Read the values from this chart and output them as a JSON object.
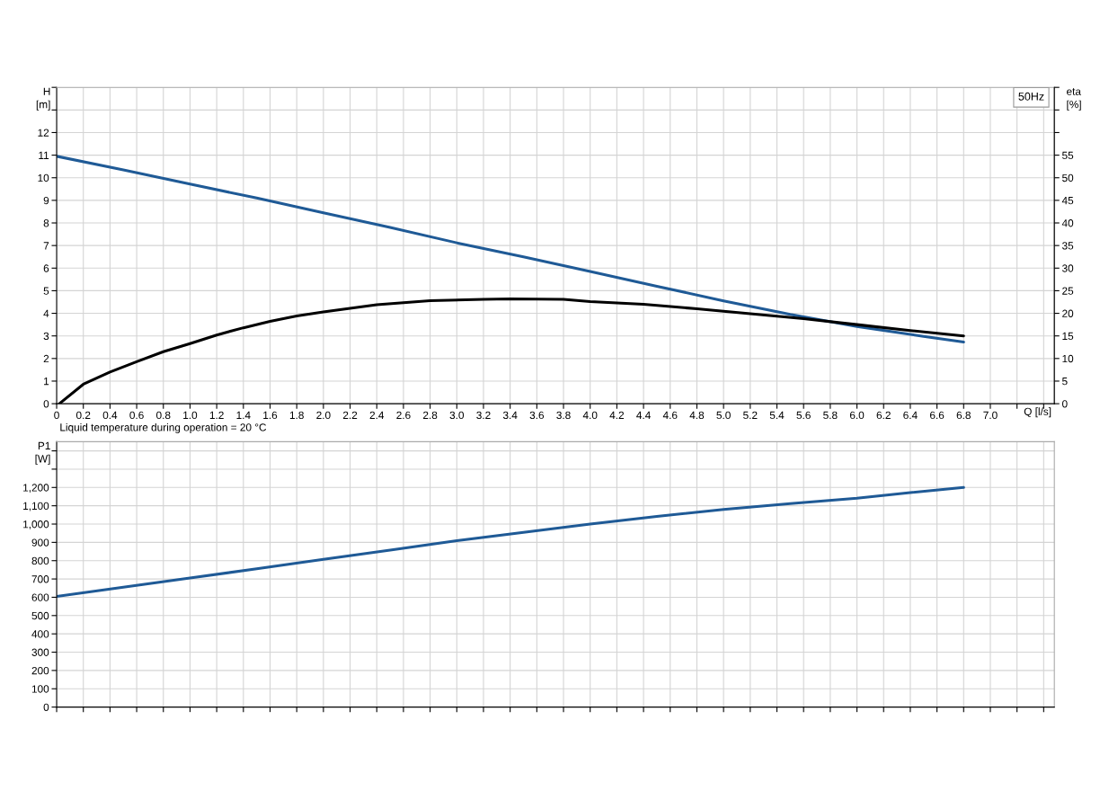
{
  "chart_data": [
    {
      "type": "line",
      "xlabel": "Q [l/s]",
      "ylabel": "H\n[m]",
      "y2label": "eta\n[%]",
      "annotations": [
        "Liquid temperature during operation = 20 °C",
        "50Hz"
      ],
      "xlim": [
        0,
        7.48
      ],
      "ylim": [
        0,
        14
      ],
      "y2lim": [
        0,
        70
      ],
      "grid": true,
      "xticks": [
        0,
        {
          "value": 0.2,
          "label": "0.2"
        },
        {
          "value": 0.4,
          "label": "0.4"
        },
        {
          "value": 0.6,
          "label": "0.6"
        },
        {
          "value": 0.8,
          "label": "0.8"
        },
        {
          "value": 1.0,
          "label": "1.0"
        },
        {
          "value": 1.2,
          "label": "1.2"
        },
        {
          "value": 1.4,
          "label": "1.4"
        },
        {
          "value": 1.6,
          "label": "1.6"
        },
        {
          "value": 1.8,
          "label": "1.8"
        },
        {
          "value": 2.0,
          "label": "2.0"
        },
        {
          "value": 2.2,
          "label": "2.2"
        },
        {
          "value": 2.4,
          "label": "2.4"
        },
        {
          "value": 2.6,
          "label": "2.6"
        },
        {
          "value": 2.8,
          "label": "2.8"
        },
        {
          "value": 3.0,
          "label": "3.0"
        },
        {
          "value": 3.2,
          "label": "3.2"
        },
        {
          "value": 3.4,
          "label": "3.4"
        },
        {
          "value": 3.6,
          "label": "3.6"
        },
        {
          "value": 3.8,
          "label": "3.8"
        },
        {
          "value": 4.0,
          "label": "4.0"
        },
        {
          "value": 4.2,
          "label": "4.2"
        },
        {
          "value": 4.4,
          "label": "4.4"
        },
        {
          "value": 4.6,
          "label": "4.6"
        },
        {
          "value": 4.8,
          "label": "4.8"
        },
        {
          "value": 5.0,
          "label": "5.0"
        },
        {
          "value": 5.2,
          "label": "5.2"
        },
        {
          "value": 5.4,
          "label": "5.4"
        },
        {
          "value": 5.6,
          "label": "5.6"
        },
        {
          "value": 5.8,
          "label": "5.8"
        },
        {
          "value": 6.0,
          "label": "6.0"
        },
        {
          "value": 6.2,
          "label": "6.2"
        },
        {
          "value": 6.4,
          "label": "6.4"
        },
        {
          "value": 6.6,
          "label": "6.6"
        },
        {
          "value": 6.8,
          "label": "6.8"
        },
        {
          "value": 7.0,
          "label": "7.0"
        },
        {
          "value": 7.2,
          "label": null
        },
        {
          "value": 7.4,
          "label": null
        }
      ],
      "yticks": [
        0,
        1,
        2,
        3,
        4,
        5,
        6,
        7,
        8,
        9,
        10,
        11,
        12,
        {
          "value": 13,
          "label": null
        },
        {
          "value": 14,
          "label": null
        }
      ],
      "y2ticks": [
        0,
        5,
        10,
        15,
        20,
        25,
        30,
        35,
        40,
        45,
        50,
        55,
        {
          "value": 60,
          "label": null
        },
        {
          "value": 65,
          "label": null
        },
        {
          "value": 70,
          "label": null
        }
      ],
      "series": [
        {
          "color": "#1f5a96",
          "axis": "y",
          "x": [
            0,
            0.5,
            1.0,
            1.5,
            2.0,
            2.5,
            3.0,
            3.5,
            4.0,
            4.5,
            5.0,
            5.5,
            6.0,
            6.5,
            6.8
          ],
          "values": [
            10.95,
            10.35,
            9.72,
            9.1,
            8.45,
            7.8,
            7.12,
            6.5,
            5.85,
            5.2,
            4.55,
            3.95,
            3.42,
            2.98,
            2.73
          ]
        },
        {
          "color": "#000000",
          "axis": "y2",
          "x": [
            0.02,
            0.2,
            0.4,
            0.6,
            0.8,
            1.0,
            1.2,
            1.4,
            1.6,
            1.8,
            2.0,
            2.4,
            2.8,
            3.2,
            3.4,
            3.8,
            4.0,
            4.4,
            4.8,
            5.2,
            5.6,
            6.0,
            6.4,
            6.8
          ],
          "values": [
            0,
            4.3,
            7.0,
            9.3,
            11.5,
            13.3,
            15.2,
            16.8,
            18.2,
            19.4,
            20.3,
            21.9,
            22.8,
            23.1,
            23.2,
            23.1,
            22.6,
            22.0,
            21.0,
            19.9,
            18.8,
            17.5,
            16.2,
            15.0
          ]
        }
      ]
    },
    {
      "type": "line",
      "ylabel": "P1\n[W]",
      "xlim": [
        0,
        7.48
      ],
      "ylim": [
        0,
        1450
      ],
      "grid": true,
      "tick_labels": "y",
      "xticks": [
        0,
        0.2,
        0.4,
        0.6,
        0.8,
        1.0,
        1.2,
        1.4,
        1.6,
        1.8,
        2.0,
        2.2,
        2.4,
        2.6,
        2.8,
        3.0,
        3.2,
        3.4,
        3.6,
        3.8,
        4.0,
        4.2,
        4.4,
        4.6,
        4.8,
        5.0,
        5.2,
        5.4,
        5.6,
        5.8,
        6.0,
        6.2,
        6.4,
        6.6,
        6.8,
        7.0,
        7.2,
        7.4
      ],
      "yticks": [
        0,
        100,
        200,
        300,
        400,
        500,
        600,
        700,
        800,
        900,
        {
          "value": 1000,
          "label": "1,000"
        },
        {
          "value": 1100,
          "label": "1,100"
        },
        {
          "value": 1200,
          "label": "1,200"
        },
        {
          "value": 1300,
          "label": null
        },
        {
          "value": 1400,
          "label": null
        }
      ],
      "series": [
        {
          "color": "#1f5a96",
          "axis": "y",
          "x": [
            0,
            0.5,
            1.0,
            1.5,
            2.0,
            2.5,
            3.0,
            3.5,
            4.0,
            4.5,
            5.0,
            5.5,
            6.0,
            6.4,
            6.8
          ],
          "values": [
            605,
            655,
            705,
            756,
            807,
            858,
            909,
            955,
            1000,
            1042,
            1080,
            1112,
            1141,
            1172,
            1200
          ]
        }
      ]
    }
  ]
}
